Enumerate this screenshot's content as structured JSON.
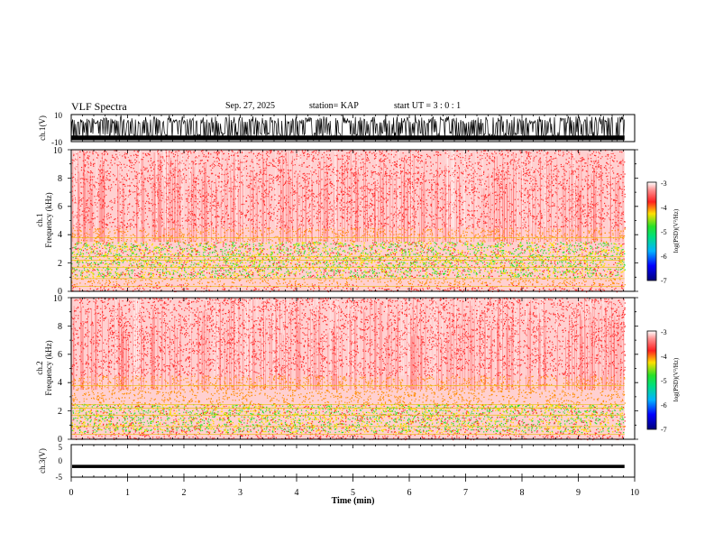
{
  "header": {
    "title": "VLF Spectra",
    "date": "Sep. 27, 2025",
    "station": "station= KAP",
    "start": "start  UT =   3 : 0  : 1"
  },
  "chart_data": [
    {
      "type": "line",
      "panel": "ch1-waveform",
      "ylabel": "ch.1(V)",
      "ylim": [
        -10,
        10
      ],
      "y_ticks": [
        "10",
        "-10"
      ],
      "xlim": [
        0,
        10
      ],
      "data_extent_min": 9.82
    },
    {
      "type": "heatmap",
      "panel": "ch1-spectrogram",
      "ylabel_line1": "ch.1",
      "ylabel_line2": "Frequency (kHz)",
      "ylim": [
        0,
        10
      ],
      "y_ticks": [
        "0",
        "2",
        "4",
        "6",
        "8",
        "10"
      ],
      "xlim": [
        0,
        10
      ],
      "colorbar_label": "log(PSD)(V²/Hz)",
      "colorbar_range": [
        -7,
        -3
      ],
      "colorbar_ticks": [
        "-3",
        "-4",
        "-5",
        "-6",
        "-7"
      ],
      "dominant_level_by_band_khz": [
        {
          "band": [
            0,
            0.5
          ],
          "level": -3.3
        },
        {
          "band": [
            0.5,
            1.0
          ],
          "level": -3.6
        },
        {
          "band": [
            1.0,
            3.5
          ],
          "level": -4.4
        },
        {
          "band": [
            3.5,
            4.5
          ],
          "level": -3.9
        },
        {
          "band": [
            4.5,
            10
          ],
          "level": -3.2
        }
      ]
    },
    {
      "type": "heatmap",
      "panel": "ch2-spectrogram",
      "ylabel_line1": "ch.2",
      "ylabel_line2": "Frequency (kHz)",
      "ylim": [
        0,
        10
      ],
      "y_ticks": [
        "0",
        "2",
        "4",
        "6",
        "8",
        "10"
      ],
      "xlim": [
        0,
        10
      ],
      "colorbar_label": "log(PSD)(V²/Hz)",
      "colorbar_range": [
        -7,
        -3
      ],
      "colorbar_ticks": [
        "-3",
        "-4",
        "-5",
        "-6",
        "-7"
      ],
      "dominant_level_by_band_khz": [
        {
          "band": [
            0,
            0.5
          ],
          "level": -3.4
        },
        {
          "band": [
            0.5,
            2.5
          ],
          "level": -4.6
        },
        {
          "band": [
            2.5,
            4.5
          ],
          "level": -3.9
        },
        {
          "band": [
            4.5,
            10
          ],
          "level": -3.2
        }
      ]
    },
    {
      "type": "line",
      "panel": "ch3-waveform",
      "ylabel": "ch.3(V)",
      "ylim": [
        -5,
        5
      ],
      "y_ticks": [
        "5",
        "0",
        "-5"
      ],
      "xlim": [
        0,
        10
      ],
      "signal_band_volts": [
        -2.2,
        -1.2
      ]
    }
  ],
  "x_axis": {
    "label": "Time (min)",
    "ticks": [
      "0",
      "1",
      "2",
      "3",
      "4",
      "5",
      "6",
      "7",
      "8",
      "9",
      "10"
    ]
  },
  "colors": {
    "spectro_red": "#ff2a2a",
    "spectro_orange": "#ff8c00",
    "spectro_yellow": "#ffe000",
    "spectro_green": "#28e028",
    "frame": "#000000"
  }
}
